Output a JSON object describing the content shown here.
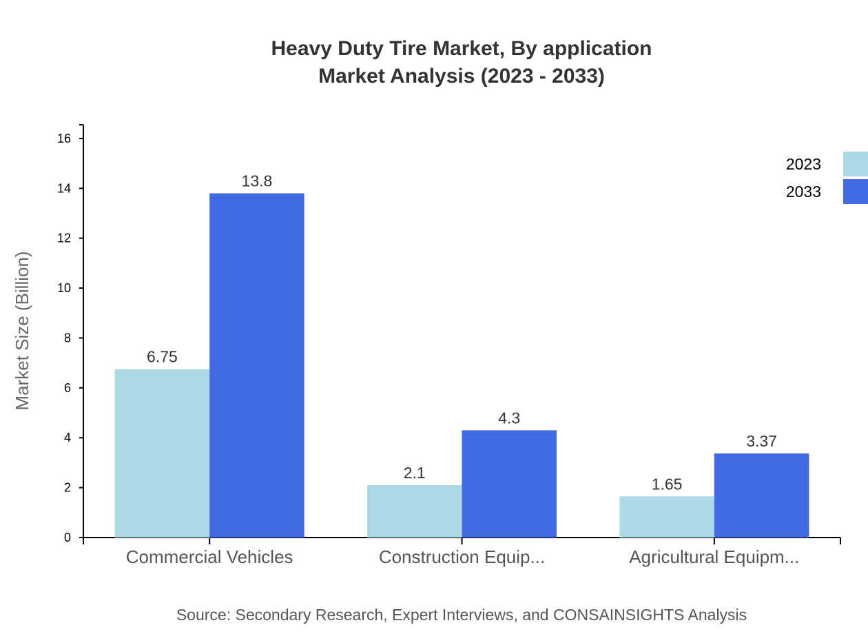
{
  "chart_data": {
    "type": "bar",
    "title": [
      "Heavy Duty Tire Market, By application",
      "Market Analysis (2023 - 2033)"
    ],
    "ylabel": "Market Size (Billion)",
    "xlabel": "",
    "categories": [
      "Commercial Vehicles",
      "Construction Equip...",
      "Agricultural Equipm..."
    ],
    "series": [
      {
        "name": "2023",
        "values": [
          6.75,
          2.1,
          1.65
        ],
        "color": "#add8e6"
      },
      {
        "name": "2033",
        "values": [
          13.8,
          4.3,
          3.37
        ],
        "color": "#4169e1"
      }
    ],
    "ylim": [
      0,
      16.55
    ],
    "yticks": [
      0,
      2,
      4,
      6,
      8,
      10,
      12,
      14,
      16
    ],
    "grid": false,
    "legend": "top-right",
    "source": "Source: Secondary Research, Expert Interviews, and CONSAINSIGHTS Analysis"
  }
}
